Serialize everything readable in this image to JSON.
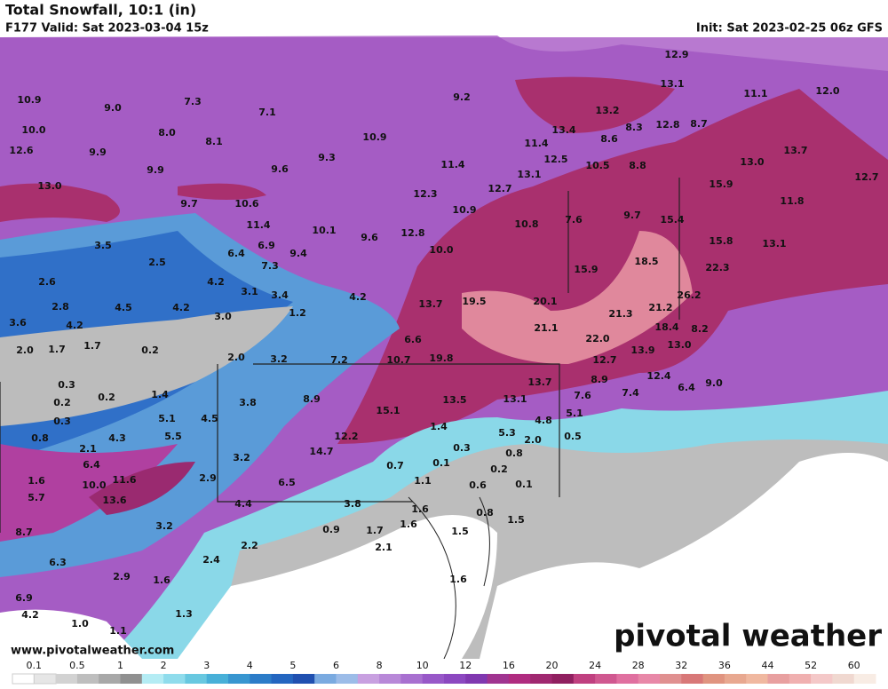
{
  "header": {
    "title": "Total Snowfall, 10:1 (in)",
    "valid": "F177 Valid: Sat 2023-03-04 15z",
    "init": "Init: Sat 2023-02-25 06z GFS"
  },
  "map": {
    "labels": [
      "10.9",
      "9.0",
      "7.3",
      "7.1",
      "9.2",
      "12.9",
      "13.1",
      "11.1",
      "12.0",
      "10.0",
      "8.0",
      "8.1",
      "10.9",
      "13.4",
      "8.6",
      "8.3",
      "12.8",
      "8.7",
      "13.2",
      "12.6",
      "9.9",
      "9.3",
      "11.4",
      "13.7",
      "13.0",
      "9.9",
      "9.6",
      "11.4",
      "12.5",
      "10.5",
      "8.8",
      "13.0",
      "13.1",
      "15.9",
      "12.7",
      "9.7",
      "10.6",
      "12.3",
      "12.7",
      "11.8",
      "11.4",
      "10.1",
      "10.9",
      "10.8",
      "7.6",
      "9.7",
      "15.4",
      "12.8",
      "9.6",
      "3.5",
      "6.4",
      "6.9",
      "9.4",
      "10.0",
      "15.8",
      "13.1",
      "2.5",
      "7.3",
      "15.9",
      "18.5",
      "22.3",
      "2.6",
      "4.2",
      "3.1",
      "3.4",
      "4.2",
      "13.7",
      "19.5",
      "20.1",
      "26.2",
      "21.2",
      "2.8",
      "4.5",
      "4.2",
      "3.0",
      "1.2",
      "21.3",
      "3.6",
      "4.2",
      "21.1",
      "18.4",
      "8.2",
      "2.0",
      "1.7",
      "1.7",
      "0.2",
      "6.6",
      "22.0",
      "13.9",
      "13.0",
      "2.0",
      "3.2",
      "7.2",
      "10.7",
      "19.8",
      "12.7",
      "0.3",
      "0.2",
      "1.4",
      "13.7",
      "8.9",
      "12.4",
      "9.0",
      "6.4",
      "0.2",
      "3.8",
      "8.9",
      "13.5",
      "13.1",
      "7.6",
      "7.4",
      "0.3",
      "5.1",
      "4.5",
      "15.1",
      "4.8",
      "5.1",
      "0.8",
      "4.3",
      "5.5",
      "1.4",
      "5.3",
      "2.0",
      "0.5",
      "2.1",
      "12.2",
      "0.3",
      "0.8",
      "3.2",
      "14.7",
      "0.7",
      "0.1",
      "6.4",
      "0.2",
      "1.6",
      "11.6",
      "2.9",
      "6.5",
      "1.1",
      "0.6",
      "0.1",
      "10.0",
      "5.7",
      "13.6",
      "4.4",
      "3.8",
      "1.6",
      "0.8",
      "1.5",
      "8.7",
      "3.2",
      "0.9",
      "1.7",
      "1.6",
      "1.5",
      "2.2",
      "2.1",
      "6.3",
      "2.4",
      "2.9",
      "1.6",
      "1.6",
      "6.9",
      "4.2",
      "1.3",
      "1.0",
      "1.1"
    ]
  },
  "footer": {
    "url": "www.pivotalweather.com",
    "logo": "pivotal weather"
  },
  "colorbar": {
    "labels": [
      "0.1",
      "0.5",
      "1",
      "2",
      "3",
      "4",
      "5",
      "6",
      "8",
      "10",
      "12",
      "16",
      "20",
      "24",
      "28",
      "32",
      "36",
      "44",
      "52",
      "60"
    ]
  }
}
